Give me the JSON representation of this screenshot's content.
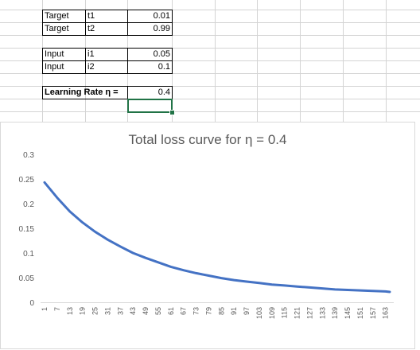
{
  "sheet": {
    "rows": [
      {
        "label": "Target",
        "var": "t1",
        "value": "0.01"
      },
      {
        "label": "Target",
        "var": "t2",
        "value": "0.99"
      },
      {
        "label": "Input",
        "var": "i1",
        "value": "0.05"
      },
      {
        "label": "Input",
        "var": "i2",
        "value": "0.1"
      }
    ],
    "learning_rate_label": "Learning Rate η =",
    "learning_rate_value": "0.4"
  },
  "chart_data": {
    "type": "line",
    "title": "Total loss curve for  η = 0.4",
    "xlabel": "",
    "ylabel": "",
    "ylim": [
      0,
      0.3
    ],
    "y_ticks": [
      "0",
      "0.05",
      "0.1",
      "0.15",
      "0.2",
      "0.25",
      "0.3"
    ],
    "x_ticks": [
      "1",
      "7",
      "13",
      "19",
      "25",
      "31",
      "37",
      "43",
      "49",
      "55",
      "61",
      "67",
      "73",
      "79",
      "85",
      "91",
      "97",
      "103",
      "109",
      "115",
      "121",
      "127",
      "133",
      "139",
      "145",
      "151",
      "157",
      "163"
    ],
    "series": [
      {
        "color": "#4472c4",
        "x": [
          1,
          7,
          13,
          19,
          25,
          31,
          37,
          43,
          49,
          55,
          61,
          67,
          73,
          79,
          85,
          91,
          97,
          103,
          109,
          115,
          121,
          127,
          133,
          139,
          145,
          151,
          157,
          163,
          165
        ],
        "values": [
          0.243,
          0.212,
          0.184,
          0.162,
          0.143,
          0.127,
          0.113,
          0.1,
          0.09,
          0.081,
          0.072,
          0.065,
          0.059,
          0.054,
          0.049,
          0.045,
          0.042,
          0.039,
          0.036,
          0.034,
          0.032,
          0.03,
          0.028,
          0.026,
          0.025,
          0.024,
          0.023,
          0.022,
          0.021
        ]
      }
    ],
    "grid": false,
    "legend": "none"
  }
}
